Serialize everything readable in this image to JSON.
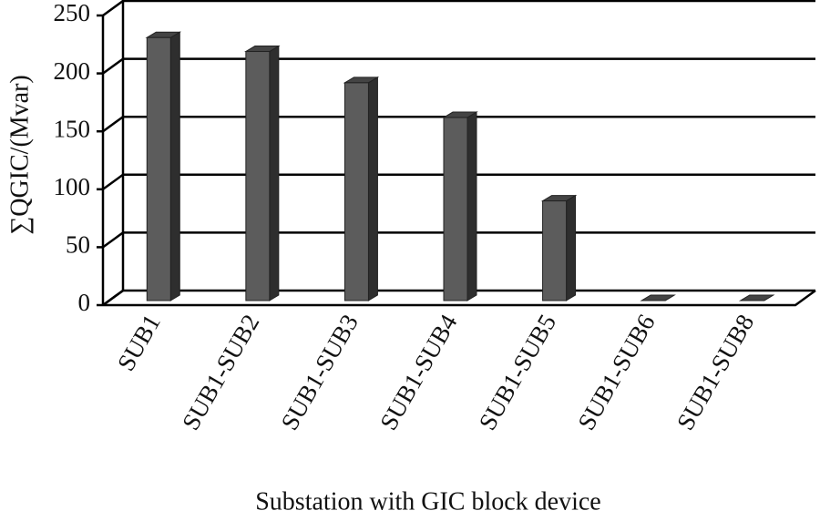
{
  "chart_data": {
    "type": "bar3d",
    "ylabel": "∑QGIC/(Mvar)",
    "xlabel": "Substation with GIC block device",
    "categories": [
      "SUB1",
      "SUB1-SUB2",
      "SUB1-SUB3",
      "SUB1-SUB4",
      "SUB1-SUB5",
      "SUB1-SUB6",
      "SUB1-SUB8"
    ],
    "values": [
      227,
      215,
      188,
      158,
      86,
      0,
      0
    ],
    "color": "#5c5c5c",
    "ylim": [
      0,
      250
    ],
    "yticks": [
      0,
      50,
      100,
      150,
      200,
      250
    ],
    "grid": true
  }
}
